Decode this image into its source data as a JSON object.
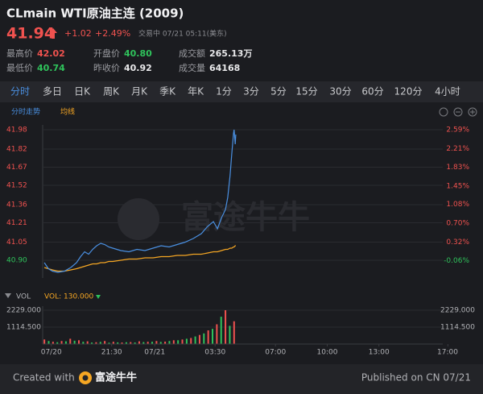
{
  "header": {
    "title": "CLmain WTI原油主连 (2009)",
    "price": "41.94",
    "change": "+1.02",
    "change_pct": "+2.49%",
    "status": "交易中 07/21 05:11(美东)"
  },
  "stats": [
    [
      {
        "label": "最高价",
        "value": "42.02",
        "color": "#f0524f"
      },
      {
        "label": "开盘价",
        "value": "40.80",
        "color": "#2fc25b"
      },
      {
        "label": "成交额",
        "value": "265.13万",
        "color": "#e8e8ea"
      }
    ],
    [
      {
        "label": "最低价",
        "value": "40.74",
        "color": "#2fc25b"
      },
      {
        "label": "昨收价",
        "value": "40.92",
        "color": "#e8e8ea"
      },
      {
        "label": "成交量",
        "value": "64168",
        "color": "#e8e8ea"
      }
    ]
  ],
  "tabs": [
    "分时",
    "多日",
    "日K",
    "周K",
    "月K",
    "季K",
    "年K",
    "1分",
    "3分",
    "5分",
    "15分",
    "30分",
    "60分",
    "120分",
    "4小时"
  ],
  "active_tab": 0,
  "watermark": "富途牛牛",
  "chart_data": [
    {
      "type": "line",
      "x": [
        -24,
        -10,
        4,
        23,
        46,
        68,
        88,
        102,
        116,
        130,
        144,
        158,
        172,
        186,
        200,
        214,
        242,
        270,
        298,
        326,
        354,
        382,
        410,
        438,
        466,
        494,
        522,
        544,
        564,
        578,
        592,
        606,
        614,
        622,
        628,
        634,
        636,
        640,
        642
      ],
      "series": [
        {
          "name": "分时走势",
          "color": "#4a90e2",
          "values": [
            40.88,
            40.83,
            40.81,
            40.8,
            40.81,
            40.84,
            40.88,
            40.93,
            40.97,
            40.95,
            40.99,
            41.02,
            41.04,
            41.03,
            41.01,
            41.0,
            40.98,
            40.97,
            40.99,
            40.98,
            41.0,
            41.02,
            41.01,
            41.03,
            41.05,
            41.08,
            41.12,
            41.18,
            41.22,
            41.16,
            41.25,
            41.32,
            41.42,
            41.6,
            41.78,
            41.95,
            41.98,
            41.86,
            41.94
          ]
        },
        {
          "name": "均线",
          "color": "#f5a623",
          "values": [
            40.84,
            40.83,
            40.82,
            40.81,
            40.81,
            40.82,
            40.83,
            40.84,
            40.85,
            40.86,
            40.87,
            40.87,
            40.88,
            40.88,
            40.89,
            40.89,
            40.9,
            40.91,
            40.91,
            40.92,
            40.92,
            40.93,
            40.93,
            40.94,
            40.94,
            40.95,
            40.95,
            40.96,
            40.97,
            40.97,
            40.98,
            40.99,
            40.99,
            41.0,
            41.0,
            41.01,
            41.01,
            41.02,
            41.02
          ]
        }
      ],
      "xlim": [
        -30,
        1390
      ],
      "ylim": [
        40.753,
        42.02
      ],
      "yticks": [
        41.98,
        41.82,
        41.67,
        41.52,
        41.36,
        41.21,
        41.05,
        {
          "value": 40.9,
          "label": "40.90"
        }
      ],
      "y2lim": [
        -0.408,
        2.688
      ],
      "y2ticks": [
        {
          "value": 2.59,
          "label": "2.59%"
        },
        {
          "value": 2.21,
          "label": "2.21%"
        },
        {
          "value": 1.83,
          "label": "1.83%"
        },
        {
          "value": 1.45,
          "label": "1.45%"
        },
        {
          "value": 1.08,
          "label": "1.08%"
        },
        {
          "value": 0.7,
          "label": "0.70%"
        },
        {
          "value": 0.32,
          "label": "0.32%"
        },
        {
          "value": -0.06,
          "label": "-0.06%"
        }
      ],
      "grid": true
    },
    {
      "type": "bar",
      "title": "VOL",
      "label": "VOL: 130.000",
      "xlim": [
        -30,
        1390
      ],
      "ylim": [
        0,
        2229
      ],
      "yticks": [
        {
          "value": 2229,
          "label": "2229.000"
        },
        {
          "value": 1114.5,
          "label": "1114.500"
        }
      ],
      "xticks": [
        {
          "value": 0,
          "label": "07/20"
        },
        {
          "value": 210,
          "label": "21:30"
        },
        {
          "value": 360,
          "label": "07/21"
        },
        {
          "value": 570,
          "label": "03:30"
        },
        {
          "value": 780,
          "label": "07:00"
        },
        {
          "value": 960,
          "label": "10:00"
        },
        {
          "value": 1140,
          "label": "13:00"
        },
        {
          "value": 1380,
          "label": "17:00"
        }
      ],
      "series": [
        {
          "color": "#f0524f",
          "x": [
            -24,
            6,
            36,
            66,
            96,
            126,
            156,
            186,
            216,
            246,
            276,
            306,
            336,
            366,
            396,
            426,
            456,
            486,
            516,
            546,
            576,
            606,
            636
          ],
          "values": [
            300,
            150,
            200,
            350,
            250,
            180,
            120,
            200,
            150,
            100,
            130,
            180,
            150,
            200,
            160,
            250,
            300,
            400,
            600,
            900,
            1300,
            2229,
            1500
          ]
        },
        {
          "color": "#2fc25b",
          "x": [
            -9,
            21,
            51,
            81,
            111,
            141,
            171,
            201,
            231,
            261,
            291,
            321,
            351,
            381,
            411,
            441,
            471,
            501,
            531,
            561,
            591,
            621
          ],
          "values": [
            200,
            120,
            180,
            220,
            150,
            100,
            140,
            90,
            110,
            120,
            100,
            130,
            150,
            140,
            200,
            250,
            350,
            500,
            700,
            1000,
            1800,
            1200
          ]
        }
      ]
    }
  ],
  "footer": {
    "created": "Created with",
    "brand": "富途牛牛",
    "published": "Published on CN 07/21"
  }
}
